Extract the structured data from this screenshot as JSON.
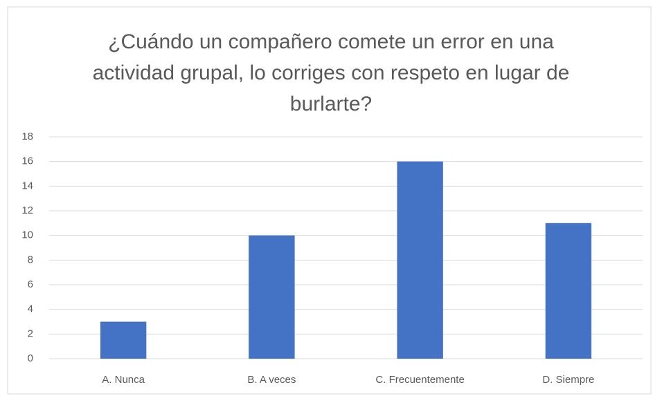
{
  "chart_data": {
    "type": "bar",
    "title": "¿Cuándo un compañero comete un error en una actividad grupal, lo corriges con respeto en lugar de burlarte?",
    "categories": [
      "A. Nunca",
      "B. A veces",
      "C. Frecuentemente",
      "D. Siempre"
    ],
    "values": [
      3,
      10,
      16,
      11
    ],
    "color": "#4472c4",
    "ylim": [
      0,
      18
    ],
    "yticks": [
      0,
      2,
      4,
      6,
      8,
      10,
      12,
      14,
      16,
      18
    ],
    "grid": true
  }
}
